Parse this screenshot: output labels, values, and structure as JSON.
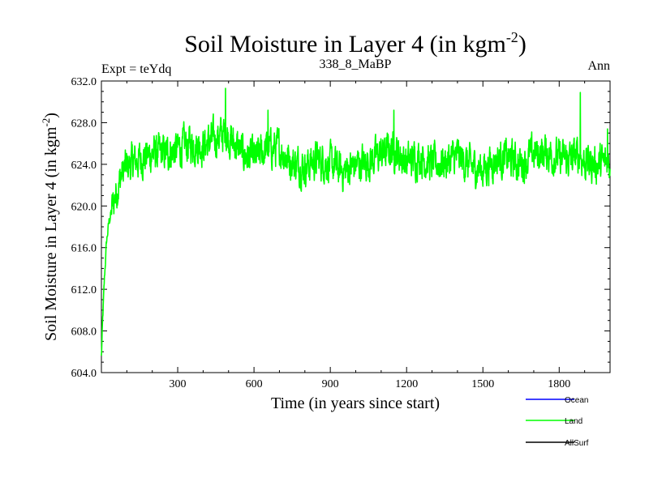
{
  "chart_data": {
    "type": "line",
    "title": "Soil Moisture in Layer 4 (in kgm",
    "title_sup": "-2",
    "title_close": ")",
    "subtitle_left": "Expt = teYdq",
    "subtitle_center": "338_8_MaBP",
    "subtitle_right": "Ann",
    "xlabel": "Time (in years since start)",
    "ylabel": "Soil Moisture in Layer 4 (in kgm",
    "ylabel_sup": "-2",
    "ylabel_close": ")",
    "xlim": [
      0,
      2000
    ],
    "ylim": [
      604.0,
      632.0
    ],
    "xticks": [
      300,
      600,
      900,
      1200,
      1500,
      1800
    ],
    "yticks": [
      "604.0",
      "608.0",
      "612.0",
      "616.0",
      "620.0",
      "624.0",
      "628.0",
      "632.0"
    ],
    "series": [
      {
        "name": "Land",
        "color": "#00ff00",
        "anchors": [
          [
            0,
            605.5
          ],
          [
            5,
            609
          ],
          [
            12,
            613
          ],
          [
            20,
            616.5
          ],
          [
            30,
            618.5
          ],
          [
            45,
            620
          ],
          [
            60,
            621.5
          ],
          [
            80,
            623
          ],
          [
            100,
            623.8
          ],
          [
            150,
            624.5
          ],
          [
            200,
            625
          ],
          [
            250,
            625
          ],
          [
            300,
            625.5
          ],
          [
            350,
            626
          ],
          [
            400,
            625.8
          ],
          [
            450,
            626.5
          ],
          [
            490,
            627
          ],
          [
            520,
            626
          ],
          [
            560,
            625
          ],
          [
            600,
            624.5
          ],
          [
            650,
            625.5
          ],
          [
            700,
            625.5
          ],
          [
            750,
            624.2
          ],
          [
            800,
            623.8
          ],
          [
            850,
            624.5
          ],
          [
            900,
            624
          ],
          [
            950,
            623.3
          ],
          [
            1000,
            624
          ],
          [
            1050,
            624.3
          ],
          [
            1100,
            625
          ],
          [
            1150,
            625.5
          ],
          [
            1200,
            624.2
          ],
          [
            1250,
            624.8
          ],
          [
            1300,
            624
          ],
          [
            1350,
            624.2
          ],
          [
            1400,
            624.8
          ],
          [
            1450,
            623.8
          ],
          [
            1500,
            623.5
          ],
          [
            1550,
            624.5
          ],
          [
            1600,
            624.6
          ],
          [
            1650,
            624
          ],
          [
            1700,
            625
          ],
          [
            1750,
            625.2
          ],
          [
            1800,
            624.5
          ],
          [
            1850,
            624.5
          ],
          [
            1880,
            625
          ],
          [
            1900,
            624.2
          ],
          [
            1950,
            624
          ],
          [
            2000,
            624.2
          ]
        ],
        "noise_amplitude": 1.4,
        "spikes": [
          [
            488,
            631.3
          ],
          [
            1883,
            630.9
          ],
          [
            655,
            629.2
          ],
          [
            1150,
            629.2
          ],
          [
            1990,
            627.4
          ]
        ]
      }
    ],
    "legend": [
      {
        "label": "Ocean",
        "color": "#0000ff"
      },
      {
        "label": "Land",
        "color": "#00ff00"
      },
      {
        "label": "AllSurf",
        "color": "#000000"
      }
    ],
    "legend_position": "bottom-right"
  }
}
